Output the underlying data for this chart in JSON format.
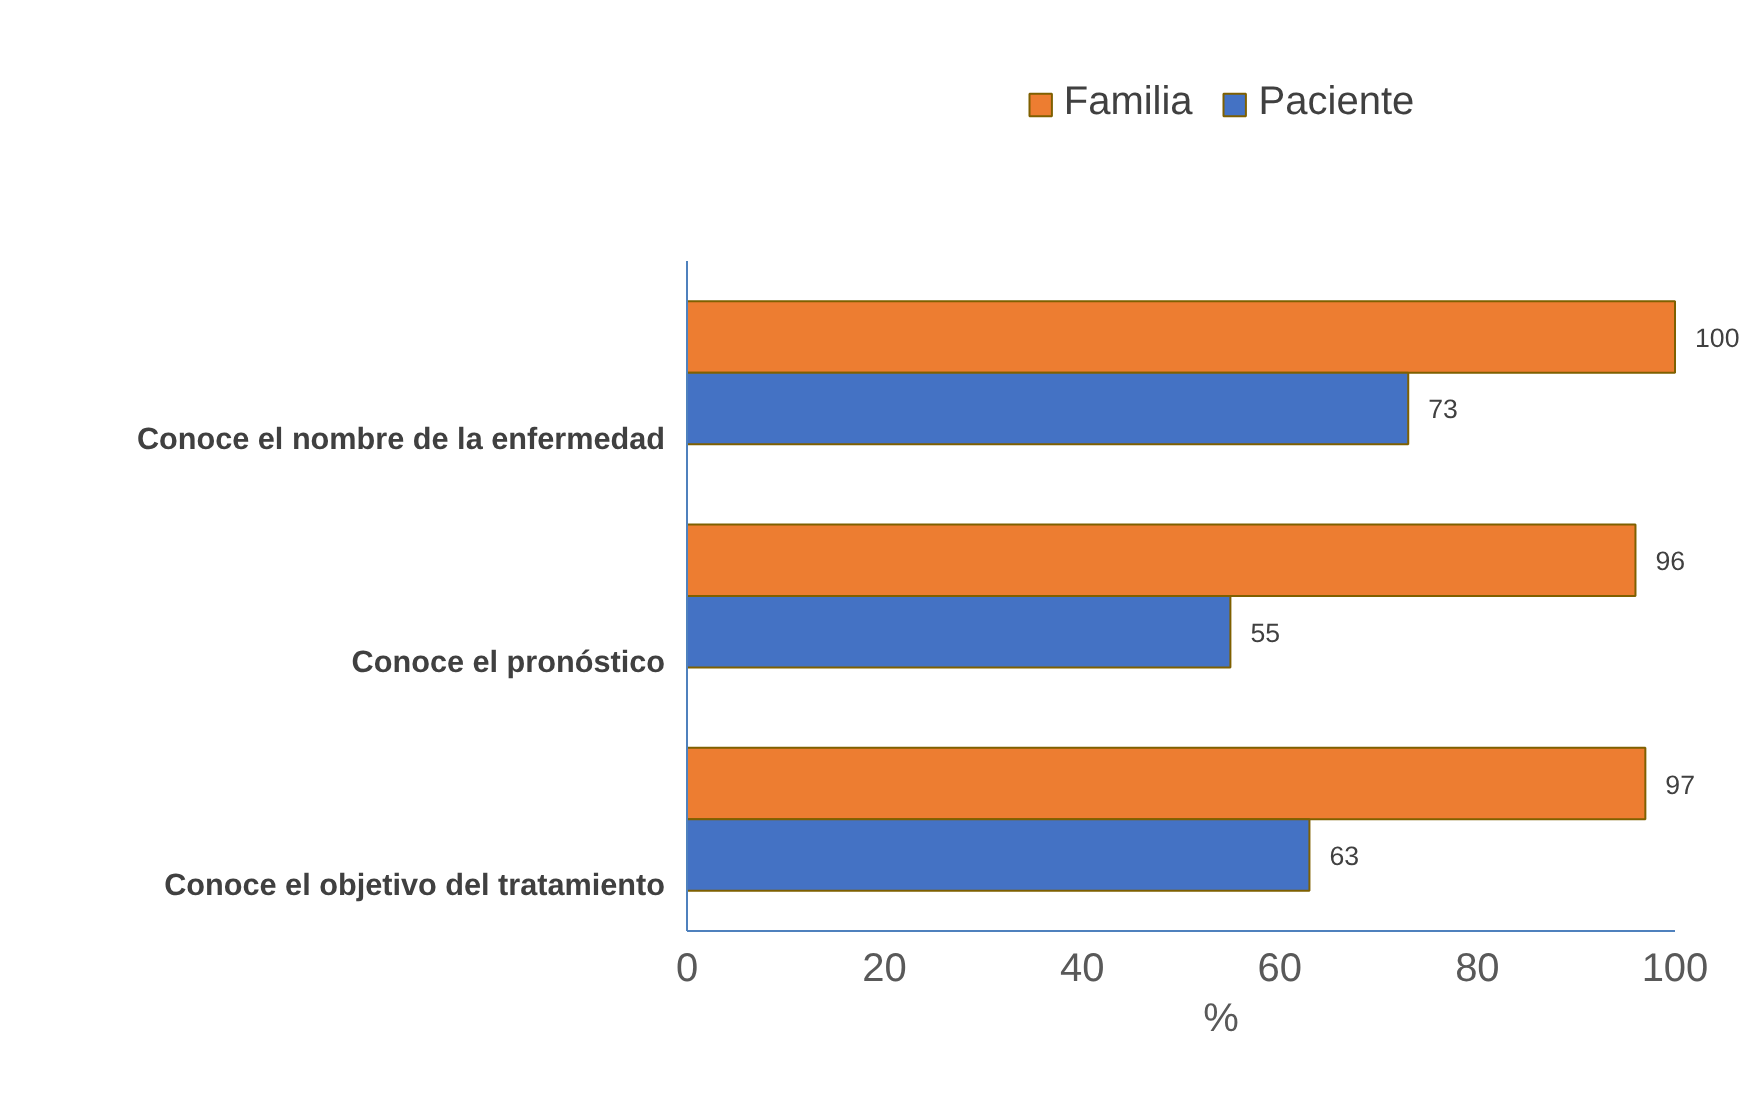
{
  "chart_data": {
    "type": "bar",
    "orientation": "horizontal",
    "categories": [
      "Conoce el nombre de la enfermedad",
      "Conoce el pronóstico",
      "Conoce el objetivo del tratamiento"
    ],
    "series": [
      {
        "name": "Familia",
        "color": "#ed7d31",
        "values": [
          100,
          96,
          97
        ]
      },
      {
        "name": "Paciente",
        "color": "#4472c4",
        "values": [
          73,
          55,
          63
        ]
      }
    ],
    "xlabel": "%",
    "xlim": [
      0,
      100
    ],
    "xticks": [
      0,
      20,
      40,
      60,
      80,
      100
    ],
    "data_labels": true,
    "legend": "top",
    "grid": false
  }
}
